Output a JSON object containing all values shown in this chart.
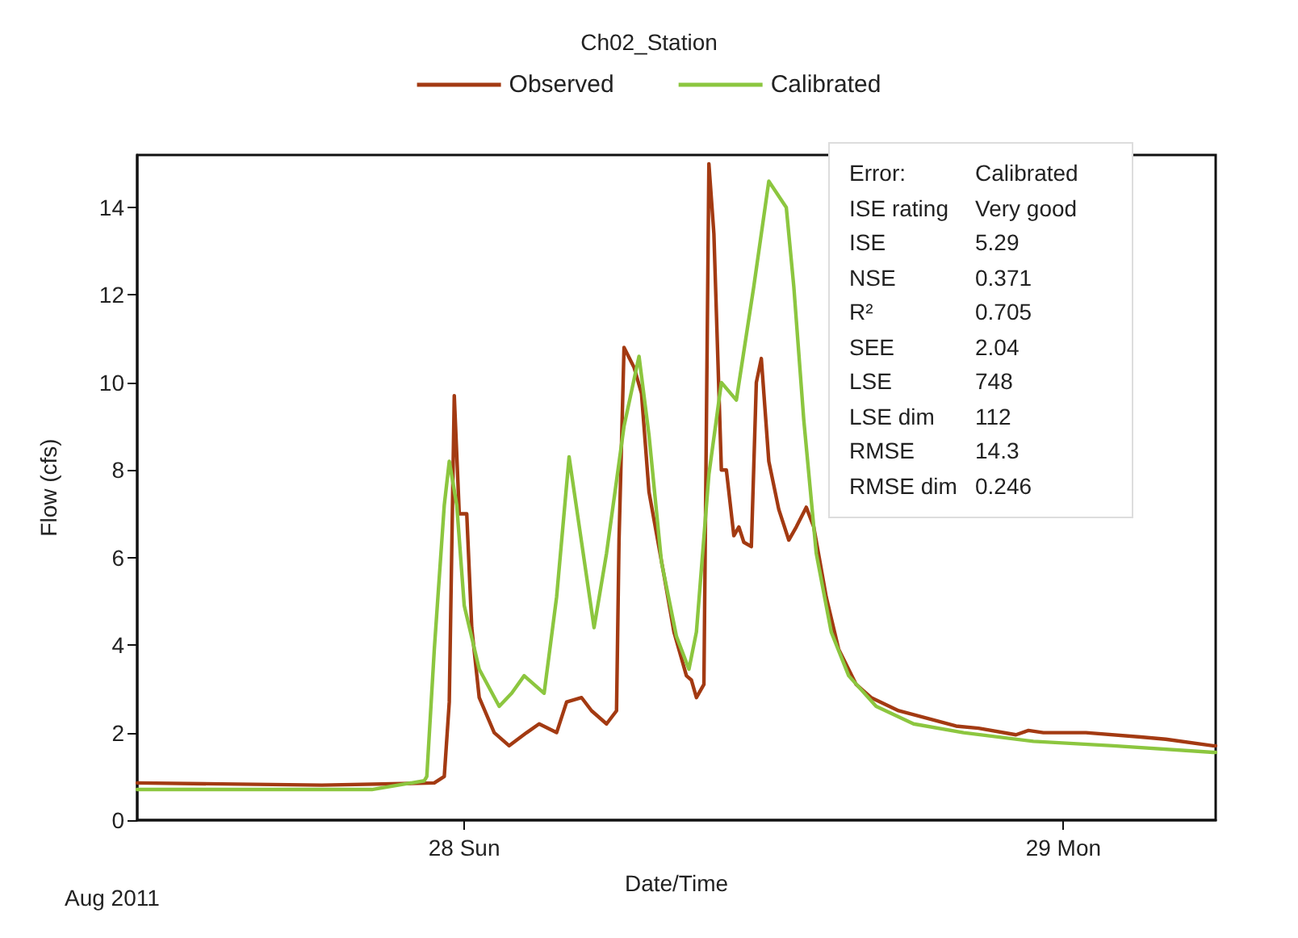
{
  "chart_data": {
    "type": "line",
    "title": "Ch02_Station",
    "xlabel": "Date/Time",
    "ylabel": "Flow (cfs)",
    "xlim": [
      "2011-08-27T10:54",
      "2011-08-29T06:06"
    ],
    "xticks": [
      {
        "value": "2011-08-28",
        "label": "28 Sun"
      },
      {
        "value": "2011-08-29",
        "label": "29 Mon"
      }
    ],
    "ylim": [
      0,
      15.2
    ],
    "yticks": [
      0,
      2,
      4,
      6,
      8,
      10,
      12,
      14
    ],
    "grid": false,
    "legend": "top",
    "marker": "none",
    "line_style": "solid",
    "annotations": [
      "Aug 2011",
      "Error:",
      "Calibrated",
      "ISE rating",
      "Very good",
      "ISE",
      "5.29",
      "NSE",
      "0.371",
      "R²",
      "0.705",
      "SEE",
      "2.04",
      "LSE",
      "748",
      "LSE dim",
      "112",
      "RMSE",
      "14.3",
      "RMSE dim",
      "0.246"
    ],
    "series": [
      {
        "name": "Observed",
        "color": "#a33a12",
        "x": [
          "2011-08-27T10:54",
          "2011-08-27T18:18",
          "2011-08-27T22:48",
          "2011-08-27T23:12",
          "2011-08-27T23:24",
          "2011-08-27T23:36",
          "2011-08-27T23:48",
          "2011-08-28T00:06",
          "2011-08-28T00:18",
          "2011-08-28T00:36",
          "2011-08-28T01:12",
          "2011-08-28T01:48",
          "2011-08-28T02:30",
          "2011-08-28T03:00",
          "2011-08-28T03:42",
          "2011-08-28T04:06",
          "2011-08-28T04:42",
          "2011-08-28T05:06",
          "2011-08-28T05:42",
          "2011-08-28T06:06",
          "2011-08-28T06:12",
          "2011-08-28T06:24",
          "2011-08-28T06:48",
          "2011-08-28T07:06",
          "2011-08-28T07:24",
          "2011-08-28T08:00",
          "2011-08-28T08:24",
          "2011-08-28T08:54",
          "2011-08-28T09:06",
          "2011-08-28T09:18",
          "2011-08-28T09:36",
          "2011-08-28T09:48",
          "2011-08-28T10:00",
          "2011-08-28T10:18",
          "2011-08-28T10:30",
          "2011-08-28T10:48",
          "2011-08-28T11:00",
          "2011-08-28T11:12",
          "2011-08-28T11:30",
          "2011-08-28T11:42",
          "2011-08-28T11:54",
          "2011-08-28T12:12",
          "2011-08-28T12:36",
          "2011-08-28T13:00",
          "2011-08-28T13:18",
          "2011-08-28T13:42",
          "2011-08-28T14:00",
          "2011-08-28T14:30",
          "2011-08-28T15:00",
          "2011-08-28T15:42",
          "2011-08-28T16:18",
          "2011-08-28T17:24",
          "2011-08-28T18:24",
          "2011-08-28T19:42",
          "2011-08-28T20:36",
          "2011-08-28T22:06",
          "2011-08-28T22:36",
          "2011-08-28T23:12",
          "2011-08-29T00:54",
          "2011-08-29T03:06",
          "2011-08-29T04:06",
          "2011-08-29T06:00",
          "2011-08-29T06:06"
        ],
        "values": [
          0.85,
          0.8,
          0.85,
          1.0,
          2.7,
          9.7,
          7.0,
          7.0,
          4.4,
          2.8,
          2.0,
          1.7,
          2.0,
          2.2,
          2.0,
          2.7,
          2.8,
          2.5,
          2.2,
          2.5,
          6.4,
          10.8,
          10.35,
          9.75,
          7.5,
          5.6,
          4.3,
          3.3,
          3.2,
          2.8,
          3.1,
          15.0,
          13.4,
          8.0,
          8.0,
          6.5,
          6.7,
          6.35,
          6.25,
          10.0,
          10.55,
          8.2,
          7.1,
          6.4,
          6.7,
          7.15,
          6.7,
          5.1,
          3.9,
          3.1,
          2.8,
          2.5,
          2.35,
          2.15,
          2.1,
          1.95,
          2.05,
          2.0,
          2.0,
          1.9,
          1.85,
          1.7,
          1.7
        ]
      },
      {
        "name": "Calibrated",
        "color": "#8cc63f",
        "x": [
          "2011-08-27T10:54",
          "2011-08-27T20:18",
          "2011-08-27T22:24",
          "2011-08-27T22:30",
          "2011-08-27T22:48",
          "2011-08-27T23:12",
          "2011-08-27T23:24",
          "2011-08-27T23:42",
          "2011-08-28T00:00",
          "2011-08-28T00:36",
          "2011-08-28T01:24",
          "2011-08-28T01:54",
          "2011-08-28T02:24",
          "2011-08-28T03:12",
          "2011-08-28T03:42",
          "2011-08-28T04:12",
          "2011-08-28T04:42",
          "2011-08-28T05:12",
          "2011-08-28T05:42",
          "2011-08-28T06:24",
          "2011-08-28T07:00",
          "2011-08-28T07:24",
          "2011-08-28T07:54",
          "2011-08-28T08:30",
          "2011-08-28T09:00",
          "2011-08-28T09:18",
          "2011-08-28T09:48",
          "2011-08-28T10:18",
          "2011-08-28T10:54",
          "2011-08-28T11:36",
          "2011-08-28T12:12",
          "2011-08-28T12:54",
          "2011-08-28T13:12",
          "2011-08-28T13:36",
          "2011-08-28T14:06",
          "2011-08-28T14:42",
          "2011-08-28T15:24",
          "2011-08-28T16:30",
          "2011-08-28T18:00",
          "2011-08-28T20:00",
          "2011-08-28T22:48",
          "2011-08-29T02:00",
          "2011-08-29T06:00",
          "2011-08-29T06:06"
        ],
        "values": [
          0.7,
          0.7,
          0.9,
          1.0,
          3.9,
          7.2,
          8.2,
          7.2,
          4.9,
          3.45,
          2.6,
          2.9,
          3.3,
          2.9,
          5.1,
          8.3,
          6.35,
          4.4,
          6.1,
          9.0,
          10.6,
          8.8,
          5.9,
          4.2,
          3.45,
          4.3,
          7.9,
          10.0,
          9.6,
          12.2,
          14.6,
          14.0,
          12.2,
          9.15,
          6.1,
          4.3,
          3.3,
          2.6,
          2.2,
          2.0,
          1.8,
          1.7,
          1.55,
          1.55
        ]
      }
    ]
  }
}
